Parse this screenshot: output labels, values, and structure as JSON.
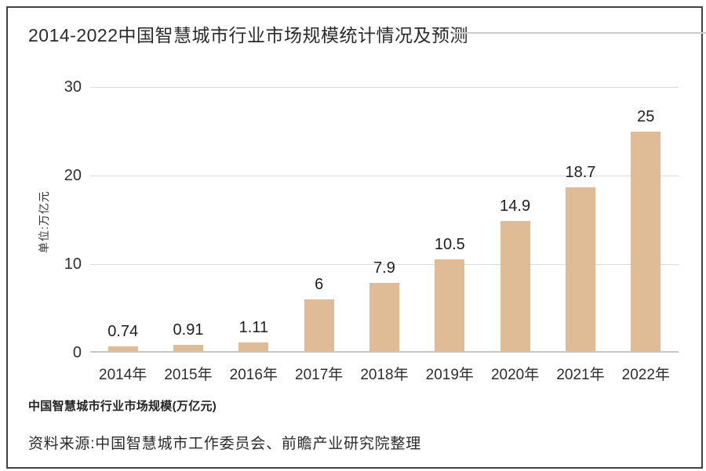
{
  "page": {
    "title": "2014-2022中国智慧城市行业市场规模统计情况及预测",
    "footer_label": "中国智慧城市行业市场规模(万亿元)",
    "source": "资料来源:中国智慧城市工作委员会、前瞻产业研究院整理"
  },
  "colors": {
    "bar": "#dfbc95",
    "grid": "#dadada",
    "baseline": "#c6c6c6",
    "frame_border": "#424242",
    "title_rule": "#cbcbcb",
    "text": "#2b2b2b"
  },
  "chart_data": {
    "type": "bar",
    "title": "2014-2022中国智慧城市行业市场规模统计情况及预测",
    "categories": [
      "2014年",
      "2015年",
      "2016年",
      "2017年",
      "2018年",
      "2019年",
      "2020年",
      "2021年",
      "2022年"
    ],
    "values": [
      0.74,
      0.91,
      1.11,
      6,
      7.9,
      10.5,
      14.9,
      18.7,
      25
    ],
    "value_labels": [
      "0.74",
      "0.91",
      "1.11",
      "6",
      "7.9",
      "10.5",
      "14.9",
      "18.7",
      "25"
    ],
    "xlabel": "",
    "ylabel": "单位:万亿元",
    "unit": "万亿元",
    "ylim": [
      0,
      30
    ],
    "yticks": [
      0,
      10,
      20,
      30
    ],
    "grid": true,
    "legend": false,
    "legend_position": "none"
  }
}
